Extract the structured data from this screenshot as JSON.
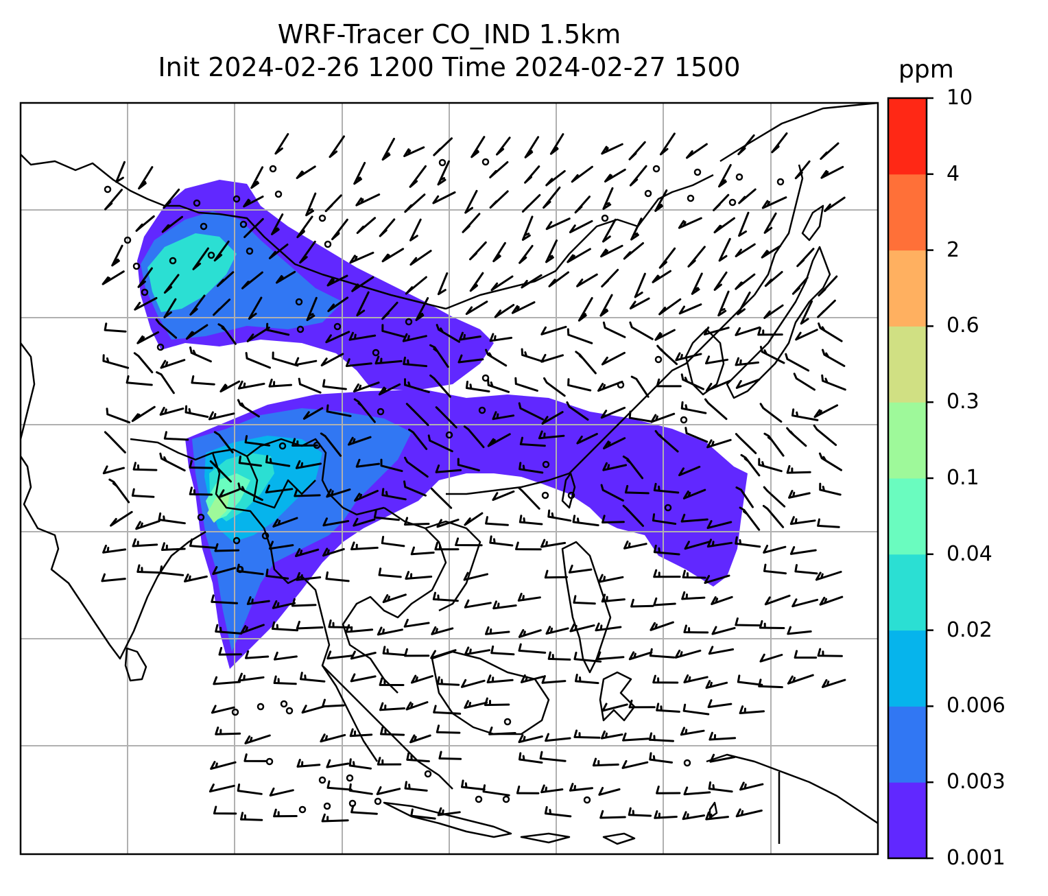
{
  "title": {
    "line1": "WRF-Tracer CO_IND 1.5km",
    "line2": "Init 2024-02-26 1200 Time 2024-02-27 1500"
  },
  "colorbar": {
    "unit": "ppm",
    "levels": [
      "0.001",
      "0.003",
      "0.006",
      "0.02",
      "0.04",
      "0.1",
      "0.3",
      "0.6",
      "2",
      "4",
      "10"
    ],
    "colors": [
      "#6128ff",
      "#3177f3",
      "#06b4ec",
      "#2bdfd3",
      "#6afcbf",
      "#9ef99a",
      "#d0e083",
      "#ffb060",
      "#ff7038",
      "#ff2815"
    ]
  },
  "map": {
    "grid": "on",
    "coastline_color": "#000000",
    "grid_color": "#b0b0b0",
    "barb_color": "#000000"
  }
}
